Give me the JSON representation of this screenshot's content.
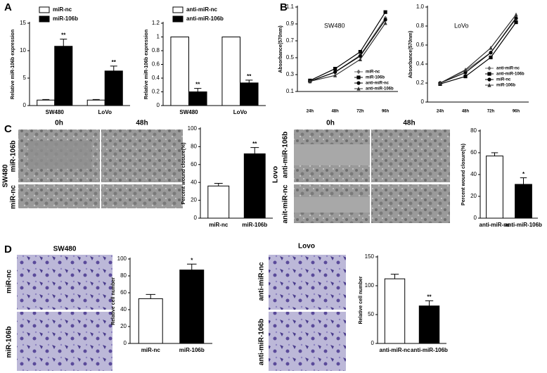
{
  "chart_data": [
    {
      "type": "bar",
      "ylabel": "Relative miR-106b expression",
      "categories": [
        "SW480",
        "LoVo"
      ],
      "series": [
        {
          "name": "miR-nc",
          "color": "#ffffff",
          "values": [
            1,
            1
          ],
          "errors": [
            0.1,
            0.1
          ]
        },
        {
          "name": "miR-106b",
          "color": "#000000",
          "values": [
            10.8,
            6.3
          ],
          "errors": [
            1.3,
            0.9
          ],
          "significance": [
            "**",
            "**"
          ]
        }
      ],
      "ylim": [
        0,
        15
      ],
      "yticks": [
        0,
        5,
        10,
        15
      ],
      "legend": "upper left"
    },
    {
      "type": "bar",
      "ylabel": "Relative miR-106b expression",
      "categories": [
        "SW480",
        "LoVo"
      ],
      "series": [
        {
          "name": "anti-miR-nc",
          "color": "#ffffff",
          "values": [
            1,
            1
          ],
          "errors": [
            0,
            0
          ]
        },
        {
          "name": "anti-miR-106b",
          "color": "#000000",
          "values": [
            0.2,
            0.33
          ],
          "errors": [
            0.05,
            0.04
          ],
          "significance": [
            "**",
            "**"
          ]
        }
      ],
      "ylim": [
        0,
        1.2
      ],
      "yticks": [
        0,
        0.2,
        0.4,
        0.6,
        0.8,
        1,
        1.2
      ],
      "legend": "upper left"
    },
    {
      "type": "line",
      "annotation": "SW480",
      "ylabel": "Absorbance(570nm)",
      "categories": [
        "24h",
        "48h",
        "72h",
        "96h"
      ],
      "series": [
        {
          "name": "miR-nc",
          "color": "#666666",
          "marker": "diamond",
          "values": [
            0.22,
            0.33,
            0.53,
            0.97
          ]
        },
        {
          "name": "miR-106b",
          "color": "#000000",
          "marker": "square",
          "values": [
            0.23,
            0.37,
            0.57,
            1.04
          ]
        },
        {
          "name": "anti-miR-nc",
          "color": "#000000",
          "marker": "circle",
          "values": [
            0.22,
            0.33,
            0.52,
            0.95
          ]
        },
        {
          "name": "anti-miR-106b",
          "color": "#333333",
          "marker": "triangle",
          "values": [
            0.22,
            0.29,
            0.48,
            0.91
          ]
        }
      ],
      "ylim": [
        0.1,
        1.1
      ],
      "yticks": [
        0.1,
        0.3,
        0.5,
        0.7,
        0.9,
        1.1
      ],
      "legend": "lower right"
    },
    {
      "type": "line",
      "annotation": "LoVo",
      "ylabel": "Absorbance(570nm)",
      "categories": [
        "24h",
        "48h",
        "72h",
        "96h"
      ],
      "series": [
        {
          "name": "anti-miR-nc",
          "color": "#666666",
          "marker": "diamond",
          "values": [
            0.2,
            0.33,
            0.52,
            0.89
          ]
        },
        {
          "name": "anti-miR-106b",
          "color": "#000000",
          "marker": "square",
          "values": [
            0.19,
            0.27,
            0.47,
            0.84
          ]
        },
        {
          "name": "miR-nc",
          "color": "#000000",
          "marker": "circle",
          "values": [
            0.2,
            0.31,
            0.52,
            0.88
          ]
        },
        {
          "name": "miR-106b",
          "color": "#333333",
          "marker": "triangle",
          "values": [
            0.2,
            0.34,
            0.57,
            0.92
          ]
        }
      ],
      "ylim": [
        0,
        1
      ],
      "yticks": [
        0,
        0.2,
        0.4,
        0.6,
        0.8,
        {
          "value": 1,
          "label": "1.0"
        }
      ],
      "legend": "lower right"
    },
    {
      "type": "bar",
      "ylabel": "Percent wound closure(%)",
      "categories": [
        "miR-nc",
        "miR-106b"
      ],
      "values": [
        36,
        72
      ],
      "errors": [
        3,
        7
      ],
      "colors": [
        "#ffffff",
        "#000000"
      ],
      "significance": [
        null,
        "**"
      ],
      "ylim": [
        0,
        100
      ],
      "yticks": [
        0,
        20,
        40,
        60,
        80,
        100
      ]
    },
    {
      "type": "bar",
      "ylabel": "Percent wound closure(%)",
      "categories": [
        "anti-miR-nc",
        "anti-miR-106b"
      ],
      "values": [
        57,
        31
      ],
      "errors": [
        3,
        6
      ],
      "colors": [
        "#ffffff",
        "#000000"
      ],
      "significance": [
        null,
        "*"
      ],
      "ylim": [
        0,
        80
      ],
      "yticks": [
        0,
        20,
        40,
        60,
        80
      ]
    },
    {
      "type": "bar",
      "ylabel": "Relative cell number",
      "categories": [
        "miR-nc",
        "miR-106b"
      ],
      "values": [
        53,
        87
      ],
      "errors": [
        5,
        7
      ],
      "colors": [
        "#ffffff",
        "#000000"
      ],
      "significance": [
        null,
        "*"
      ],
      "ylim": [
        0,
        100
      ],
      "yticks": [
        0,
        20,
        40,
        60,
        80,
        100
      ]
    },
    {
      "type": "bar",
      "ylabel": "Relative cell number",
      "categories": [
        "anti-miR-nc",
        "anti-miR-106b"
      ],
      "values": [
        112,
        65
      ],
      "errors": [
        8,
        9
      ],
      "colors": [
        "#ffffff",
        "#000000"
      ],
      "significance": [
        null,
        "**"
      ],
      "ylim": [
        0,
        150
      ],
      "yticks": [
        0,
        50,
        100,
        150
      ]
    }
  ],
  "figure": {
    "panels": [
      "A",
      "B",
      "C",
      "D"
    ],
    "c_left": {
      "times": [
        "0h",
        "48h"
      ],
      "cell_line": "SW480",
      "rows": [
        "miR-106b",
        "miR-nc"
      ]
    },
    "c_right": {
      "times": [
        "0h",
        "48h"
      ],
      "cell_line": "Lovo",
      "rows": [
        "anti-miR-106b",
        "anit-miR-nc"
      ]
    },
    "d_left": {
      "cell_line": "SW480",
      "rows": [
        "miR-nc",
        "miR-106b"
      ]
    },
    "d_right": {
      "cell_line": "Lovo",
      "rows": [
        "anti-miR-nc",
        "anti-miR-106b"
      ]
    }
  }
}
